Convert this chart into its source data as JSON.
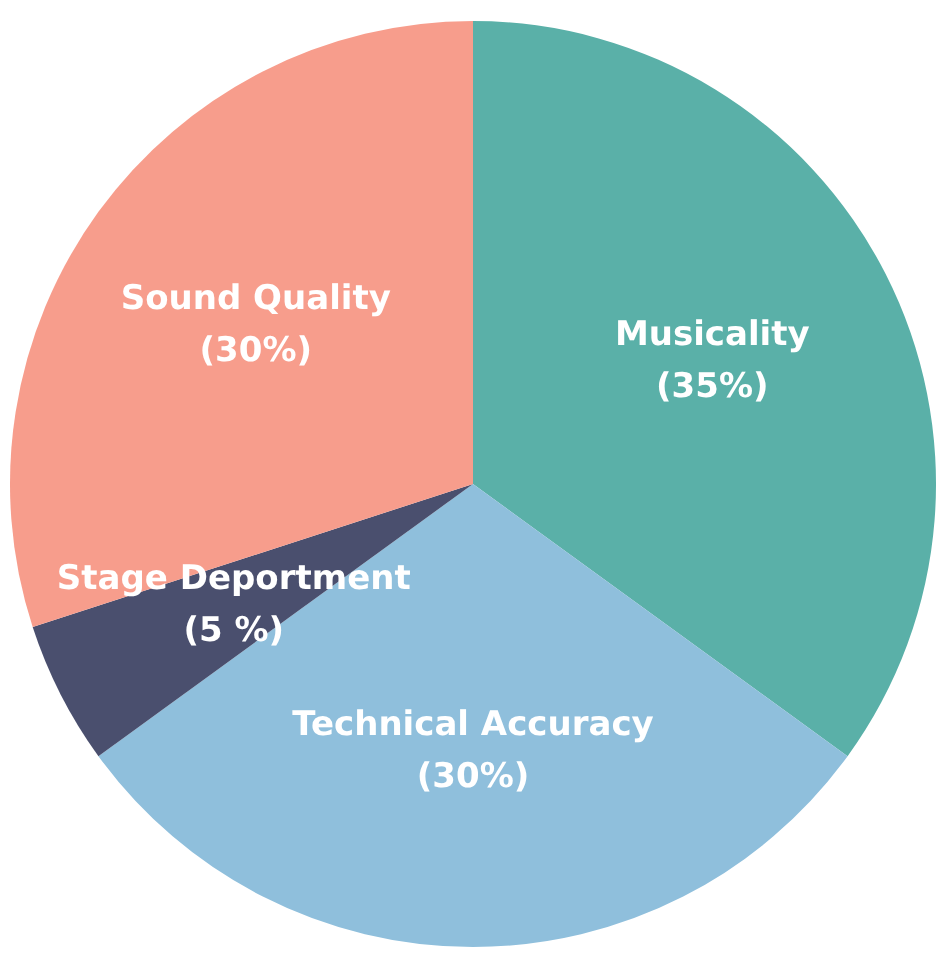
{
  "chart_data": {
    "type": "pie",
    "categories": [
      "Musicality",
      "Technical Accuracy",
      "Stage Deportment",
      "Sound Quality"
    ],
    "values": [
      35,
      30,
      5,
      30
    ],
    "colors": [
      "#5ab0a8",
      "#8fbfdc",
      "#4a4f6e",
      "#f79d8c"
    ],
    "value_labels": [
      "(35%)",
      "(30%)",
      "(5 %)",
      "(30%)"
    ]
  }
}
